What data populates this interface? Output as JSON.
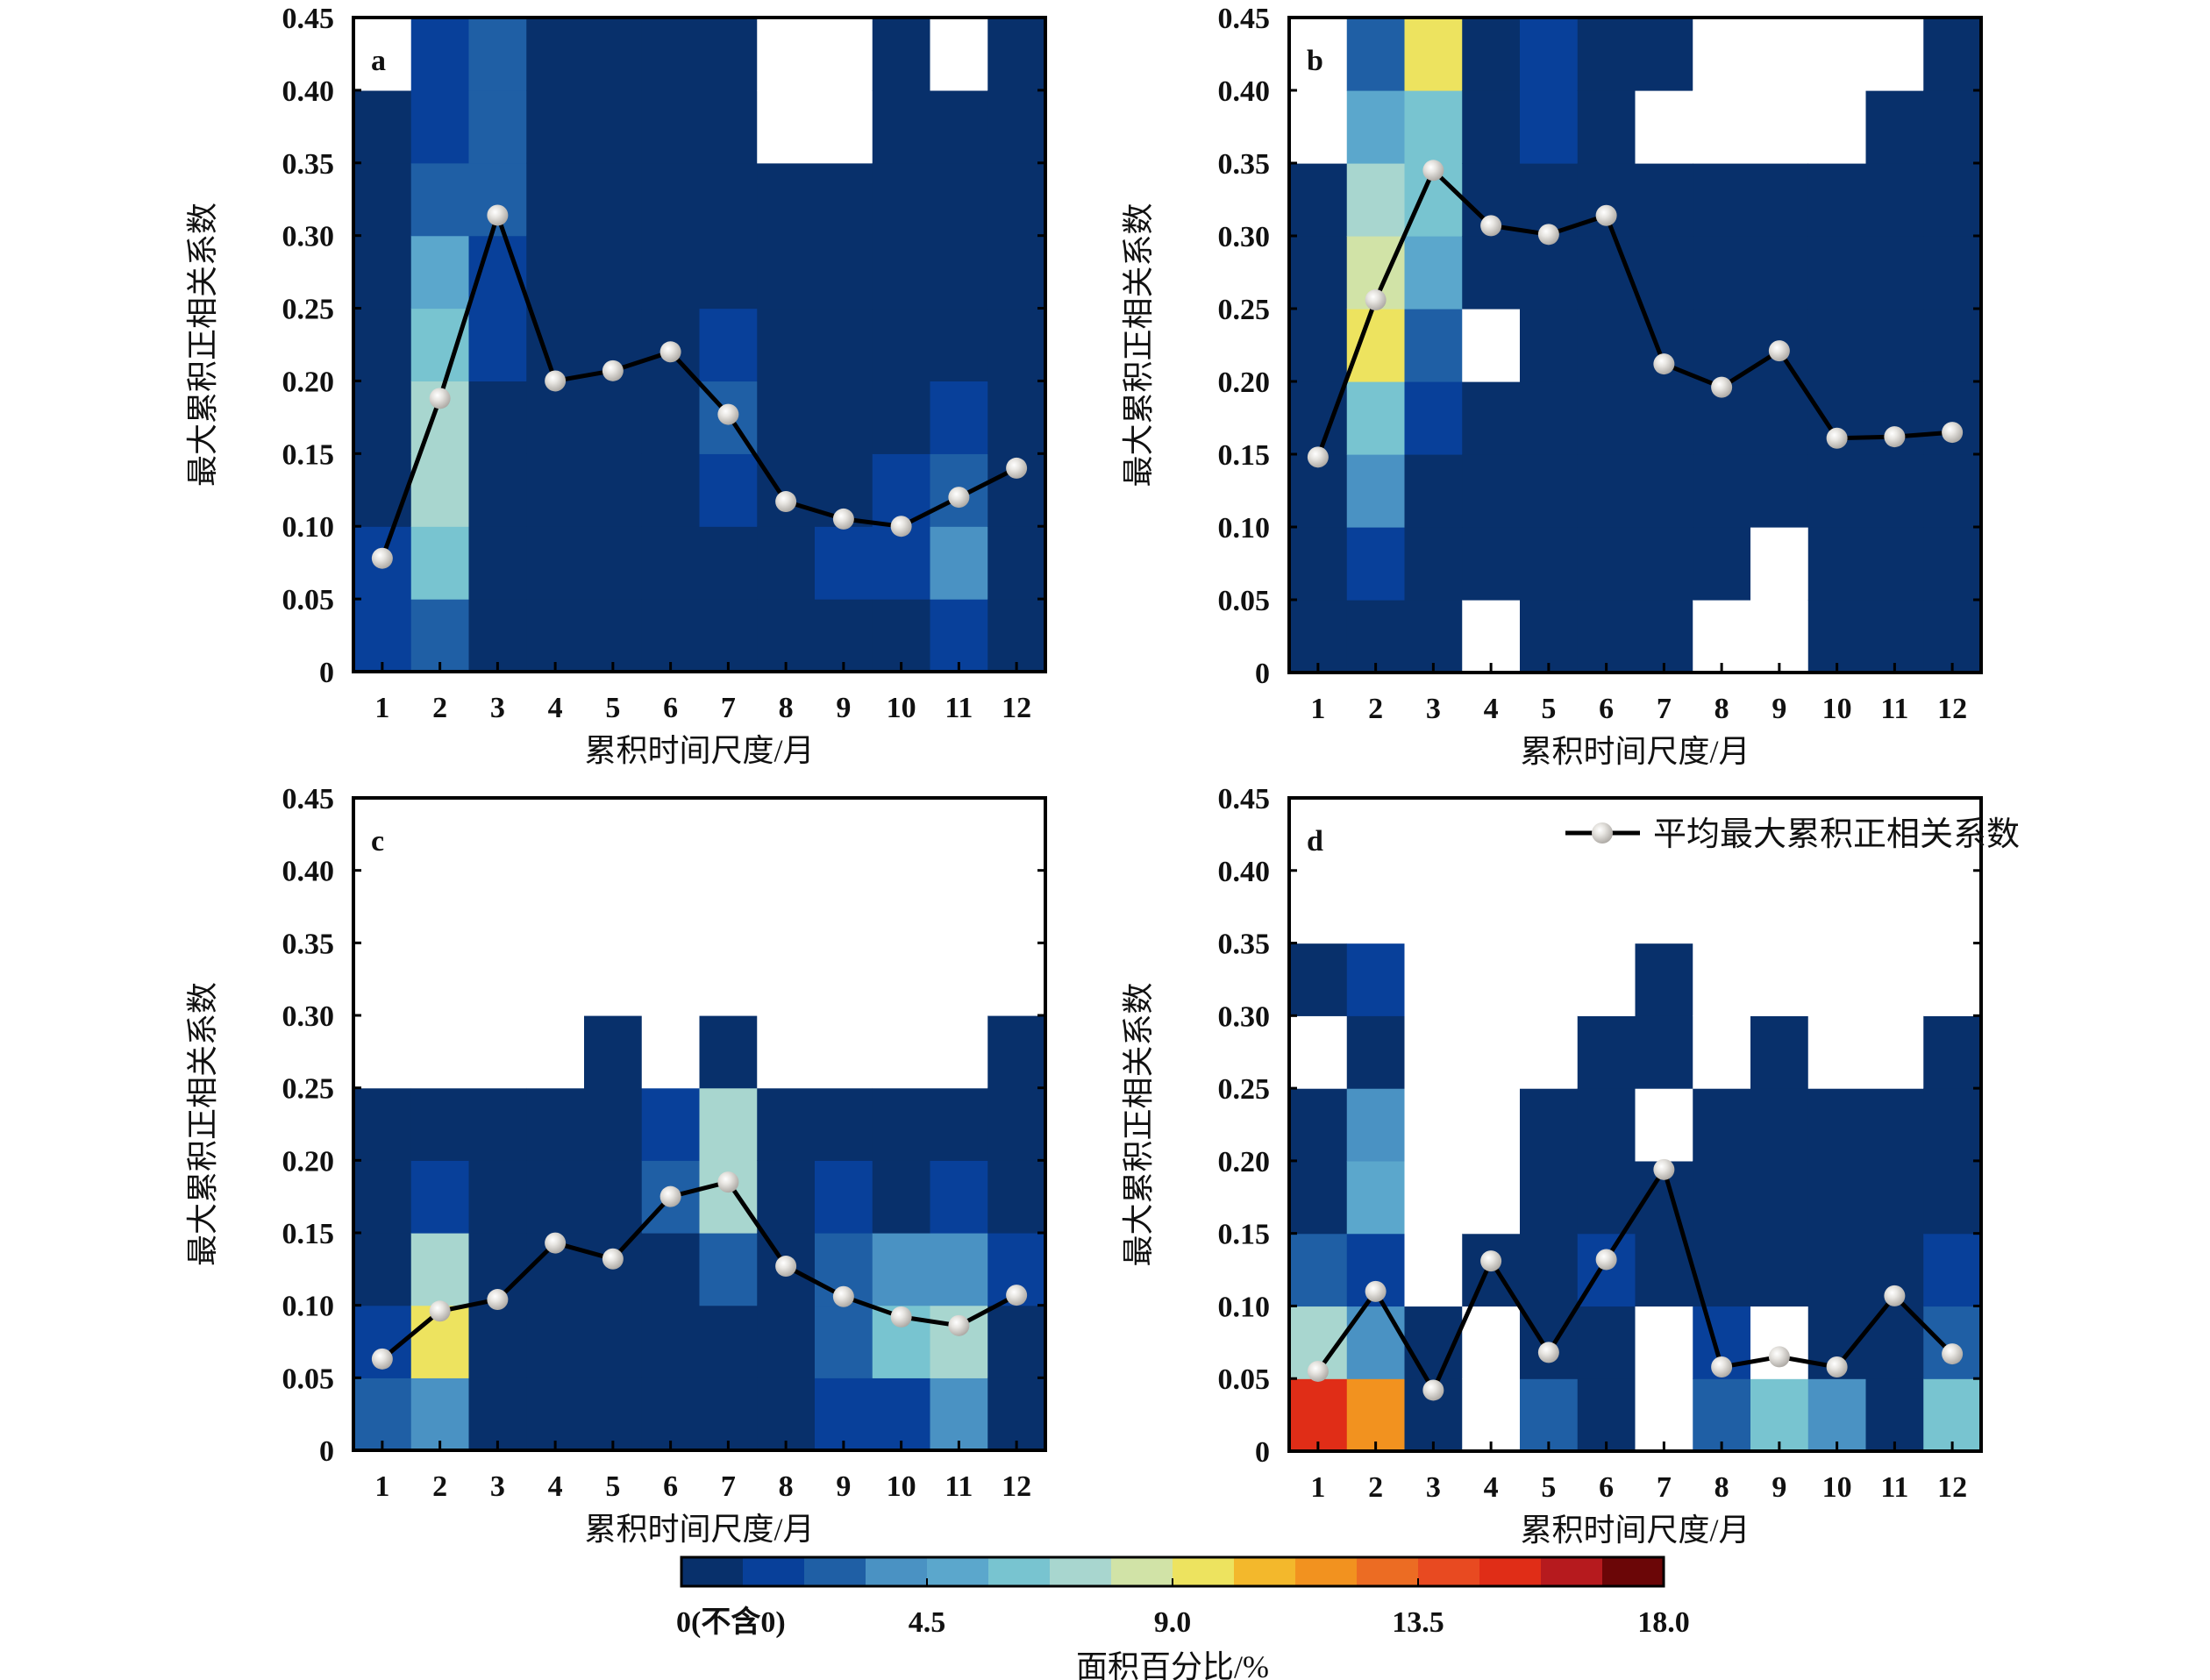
{
  "colorbar": {
    "label": "面积百分比/%",
    "tick_labels": [
      "0(不含0)",
      "4.5",
      "9.0",
      "13.5",
      "18.0"
    ],
    "tick_values": [
      0,
      4.5,
      9.0,
      13.5,
      18.0
    ],
    "range": [
      0,
      18
    ],
    "bins": 16,
    "colors": [
      "#08306b",
      "#08409a",
      "#1f5fa5",
      "#4a92c3",
      "#5ba7cc",
      "#78c4d0",
      "#a8d6cf",
      "#d1e3a7",
      "#ede35f",
      "#f3b82c",
      "#f2921f",
      "#ec6c23",
      "#e84a21",
      "#e02d17",
      "#b61a1e",
      "#6b0607"
    ]
  },
  "chart_data": [
    {
      "type": "heatmap",
      "panel": "a",
      "xlabel": "累积时间尺度/月",
      "ylabel": "最大累积正相关系数",
      "x": [
        1,
        2,
        3,
        4,
        5,
        6,
        7,
        8,
        9,
        10,
        11,
        12
      ],
      "y_bins": [
        [
          0,
          0.05
        ],
        [
          0.05,
          0.1
        ],
        [
          0.1,
          0.15
        ],
        [
          0.15,
          0.2
        ],
        [
          0.2,
          0.25
        ],
        [
          0.25,
          0.3
        ],
        [
          0.3,
          0.35
        ],
        [
          0.35,
          0.4
        ],
        [
          0.4,
          0.45
        ]
      ],
      "ylim": [
        0,
        0.45
      ],
      "yticks": [
        "0",
        "0.05",
        "0.10",
        "0.15",
        "0.20",
        "0.25",
        "0.30",
        "0.35",
        "0.40",
        "0.45"
      ],
      "cell_levels_note": "color bin index per column from lowest y-bin upward; -1 = no data (white)",
      "cells": [
        [
          1,
          1,
          0,
          0,
          0,
          0,
          0,
          0,
          -1
        ],
        [
          2,
          5,
          6,
          6,
          5,
          4,
          2,
          1,
          1
        ],
        [
          0,
          0,
          0,
          0,
          1,
          1,
          2,
          2,
          2
        ],
        [
          0,
          0,
          0,
          0,
          0,
          0,
          0,
          0,
          0
        ],
        [
          0,
          0,
          0,
          0,
          0,
          0,
          0,
          0,
          0
        ],
        [
          0,
          0,
          0,
          0,
          0,
          0,
          0,
          0,
          0
        ],
        [
          0,
          0,
          1,
          2,
          1,
          0,
          0,
          0,
          0
        ],
        [
          0,
          0,
          0,
          0,
          0,
          0,
          0,
          -1,
          -1
        ],
        [
          0,
          1,
          0,
          0,
          0,
          0,
          0,
          -1,
          -1
        ],
        [
          0,
          1,
          1,
          0,
          0,
          0,
          0,
          0,
          0
        ],
        [
          1,
          3,
          2,
          1,
          0,
          0,
          0,
          0,
          -1
        ],
        [
          0,
          0,
          0,
          0,
          0,
          0,
          0,
          0,
          0
        ]
      ],
      "series": [
        {
          "name": "平均最大累积正相关系数",
          "values": [
            0.078,
            0.188,
            0.314,
            0.2,
            0.207,
            0.22,
            0.177,
            0.117,
            0.105,
            0.1,
            0.12,
            0.14
          ]
        }
      ]
    },
    {
      "type": "heatmap",
      "panel": "b",
      "xlabel": "累积时间尺度/月",
      "ylabel": "最大累积正相关系数",
      "x": [
        1,
        2,
        3,
        4,
        5,
        6,
        7,
        8,
        9,
        10,
        11,
        12
      ],
      "ylim": [
        0,
        0.45
      ],
      "yticks": [
        "0",
        "0.05",
        "0.10",
        "0.15",
        "0.20",
        "0.25",
        "0.30",
        "0.35",
        "0.40",
        "0.45"
      ],
      "cells": [
        [
          0,
          0,
          0,
          0,
          0,
          0,
          0,
          -1,
          -1
        ],
        [
          0,
          1,
          3,
          5,
          8,
          7,
          6,
          4,
          2
        ],
        [
          0,
          0,
          0,
          1,
          2,
          4,
          5,
          5,
          8
        ],
        [
          -1,
          0,
          0,
          0,
          -1,
          0,
          0,
          0,
          0
        ],
        [
          0,
          0,
          0,
          0,
          0,
          0,
          0,
          1,
          1
        ],
        [
          0,
          0,
          0,
          0,
          0,
          0,
          0,
          0,
          0
        ],
        [
          0,
          0,
          0,
          0,
          0,
          0,
          0,
          -1,
          0
        ],
        [
          -1,
          0,
          0,
          0,
          0,
          0,
          0,
          -1,
          -1
        ],
        [
          -1,
          -1,
          0,
          0,
          0,
          0,
          0,
          -1,
          -1
        ],
        [
          0,
          0,
          0,
          0,
          0,
          0,
          0,
          -1,
          -1
        ],
        [
          0,
          0,
          0,
          0,
          0,
          0,
          0,
          0,
          -1
        ],
        [
          0,
          0,
          0,
          0,
          0,
          0,
          0,
          0,
          0
        ]
      ],
      "series": [
        {
          "name": "平均最大累积正相关系数",
          "values": [
            0.148,
            0.256,
            0.345,
            0.307,
            0.301,
            0.314,
            0.212,
            0.196,
            0.221,
            0.161,
            0.162,
            0.165
          ]
        }
      ]
    },
    {
      "type": "heatmap",
      "panel": "c",
      "xlabel": "累积时间尺度/月",
      "ylabel": "最大累积正相关系数",
      "x": [
        1,
        2,
        3,
        4,
        5,
        6,
        7,
        8,
        9,
        10,
        11,
        12
      ],
      "ylim": [
        0,
        0.45
      ],
      "yticks": [
        "0",
        "0.05",
        "0.10",
        "0.15",
        "0.20",
        "0.25",
        "0.30",
        "0.35",
        "0.40",
        "0.45"
      ],
      "cells": [
        [
          2,
          1,
          0,
          0,
          0,
          -1,
          -1,
          -1,
          -1
        ],
        [
          3,
          8,
          6,
          1,
          0,
          -1,
          -1,
          -1,
          -1
        ],
        [
          0,
          0,
          0,
          0,
          0,
          -1,
          -1,
          -1,
          -1
        ],
        [
          0,
          0,
          0,
          0,
          0,
          -1,
          -1,
          -1,
          -1
        ],
        [
          0,
          0,
          0,
          0,
          0,
          0,
          -1,
          -1,
          -1
        ],
        [
          0,
          0,
          0,
          2,
          1,
          -1,
          -1,
          -1,
          -1
        ],
        [
          0,
          0,
          2,
          6,
          6,
          0,
          -1,
          -1,
          -1
        ],
        [
          0,
          0,
          0,
          0,
          0,
          -1,
          -1,
          -1,
          -1
        ],
        [
          1,
          2,
          2,
          1,
          0,
          -1,
          -1,
          -1,
          -1
        ],
        [
          1,
          5,
          3,
          0,
          0,
          -1,
          -1,
          -1,
          -1
        ],
        [
          3,
          6,
          3,
          1,
          0,
          -1,
          -1,
          -1,
          -1
        ],
        [
          0,
          0,
          1,
          0,
          0,
          0,
          -1,
          -1,
          -1
        ]
      ],
      "series": [
        {
          "name": "平均最大累积正相关系数",
          "values": [
            0.063,
            0.096,
            0.104,
            0.143,
            0.132,
            0.175,
            0.185,
            0.127,
            0.106,
            0.092,
            0.086,
            0.107
          ]
        }
      ]
    },
    {
      "type": "heatmap",
      "panel": "d",
      "xlabel": "累积时间尺度/月",
      "ylabel": "最大累积正相关系数",
      "x": [
        1,
        2,
        3,
        4,
        5,
        6,
        7,
        8,
        9,
        10,
        11,
        12
      ],
      "ylim": [
        0,
        0.45
      ],
      "yticks": [
        "0",
        "0.05",
        "0.10",
        "0.15",
        "0.20",
        "0.25",
        "0.30",
        "0.35",
        "0.40",
        "0.45"
      ],
      "legend": {
        "label": "平均最大累积正相关系数",
        "position": "top-right"
      },
      "cells": [
        [
          13,
          6,
          2,
          0,
          0,
          -1,
          0,
          -1,
          -1
        ],
        [
          10,
          3,
          1,
          4,
          3,
          0,
          1,
          -1,
          -1
        ],
        [
          0,
          0,
          -1,
          -1,
          -1,
          -1,
          -1,
          -1,
          -1
        ],
        [
          -1,
          -1,
          0,
          -1,
          -1,
          -1,
          -1,
          -1,
          -1
        ],
        [
          2,
          0,
          0,
          0,
          0,
          -1,
          -1,
          -1,
          -1
        ],
        [
          0,
          0,
          1,
          0,
          0,
          0,
          -1,
          -1,
          -1
        ],
        [
          -1,
          -1,
          0,
          0,
          -1,
          0,
          0,
          -1,
          -1
        ],
        [
          2,
          1,
          0,
          0,
          0,
          -1,
          -1,
          -1,
          -1
        ],
        [
          5,
          -1,
          0,
          0,
          0,
          0,
          -1,
          -1,
          -1
        ],
        [
          3,
          0,
          0,
          0,
          0,
          -1,
          -1,
          -1,
          -1
        ],
        [
          0,
          0,
          0,
          0,
          0,
          -1,
          -1,
          -1,
          -1
        ],
        [
          5,
          2,
          1,
          0,
          0,
          0,
          -1,
          -1,
          -1
        ]
      ],
      "series": [
        {
          "name": "平均最大累积正相关系数",
          "values": [
            0.055,
            0.11,
            0.042,
            0.131,
            0.068,
            0.132,
            0.194,
            0.058,
            0.065,
            0.058,
            0.107,
            0.067
          ]
        }
      ]
    }
  ]
}
